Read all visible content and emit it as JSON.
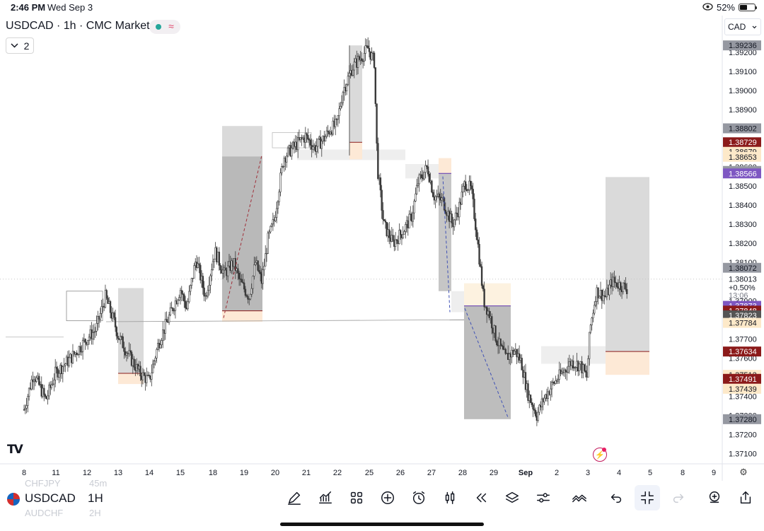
{
  "status_bar": {
    "time": "2:46 PM",
    "date": "Wed Sep 3",
    "battery": "52%",
    "battery_level": 0.52
  },
  "header": {
    "title": "USDCAD · 1h · CMC Markets",
    "collapse_count": "2",
    "currency": "CAD"
  },
  "bottom_bar": {
    "symbol": "USDCAD",
    "interval": "1H",
    "ghost_above_symbol": "CHFJPY",
    "ghost_above_interval": "45m",
    "ghost_below_symbol": "AUDCHF",
    "ghost_below_interval": "2H"
  },
  "chart_data": {
    "type": "candlestick",
    "symbol": "USDCAD",
    "interval": "1h",
    "ylim": [
      1.3705,
      1.3927
    ],
    "y_ticks": [
      "1.37100",
      "1.37200",
      "1.37300",
      "1.37400",
      "1.37500",
      "1.37600",
      "1.37700",
      "1.37800",
      "1.37900",
      "1.38000",
      "1.38100",
      "1.38200",
      "1.38300",
      "1.38400",
      "1.38500",
      "1.38600",
      "1.38700",
      "1.38800",
      "1.38900",
      "1.39000",
      "1.39100",
      "1.39200"
    ],
    "x_ticks": [
      "8",
      "11",
      "12",
      "13",
      "14",
      "15",
      "18",
      "19",
      "20",
      "21",
      "22",
      "25",
      "26",
      "27",
      "28",
      "29",
      "Sep",
      "2",
      "3",
      "4",
      "5",
      "8",
      "9"
    ],
    "price_path": [
      [
        0.0,
        1.3733
      ],
      [
        0.3,
        1.3752
      ],
      [
        0.7,
        1.3738
      ],
      [
        1.0,
        1.3752
      ],
      [
        1.5,
        1.376
      ],
      [
        2.0,
        1.377
      ],
      [
        2.3,
        1.3775
      ],
      [
        2.6,
        1.3792
      ],
      [
        2.9,
        1.3778
      ],
      [
        3.0,
        1.3772
      ],
      [
        3.4,
        1.376
      ],
      [
        3.7,
        1.3752
      ],
      [
        4.0,
        1.3748
      ],
      [
        4.3,
        1.3768
      ],
      [
        4.6,
        1.378
      ],
      [
        5.0,
        1.3796
      ],
      [
        5.2,
        1.3786
      ],
      [
        5.5,
        1.3812
      ],
      [
        5.8,
        1.3792
      ],
      [
        6.1,
        1.3816
      ],
      [
        6.4,
        1.3804
      ],
      [
        6.7,
        1.381
      ],
      [
        6.9,
        1.38
      ],
      [
        7.2,
        1.3792
      ],
      [
        7.4,
        1.381
      ],
      [
        7.6,
        1.38
      ],
      [
        7.8,
        1.3822
      ],
      [
        8.0,
        1.3832
      ],
      [
        8.3,
        1.3865
      ],
      [
        8.6,
        1.387
      ],
      [
        9.0,
        1.3876
      ],
      [
        9.3,
        1.387
      ],
      [
        9.6,
        1.3875
      ],
      [
        9.8,
        1.388
      ],
      [
        10.0,
        1.3882
      ],
      [
        10.2,
        1.39
      ],
      [
        10.5,
        1.3912
      ],
      [
        10.8,
        1.3918
      ],
      [
        11.0,
        1.3922
      ],
      [
        11.2,
        1.3915
      ],
      [
        11.3,
        1.386
      ],
      [
        11.5,
        1.383
      ],
      [
        11.8,
        1.382
      ],
      [
        12.1,
        1.3826
      ],
      [
        12.4,
        1.3834
      ],
      [
        12.6,
        1.3852
      ],
      [
        12.9,
        1.386
      ],
      [
        13.1,
        1.3845
      ],
      [
        13.4,
        1.3842
      ],
      [
        13.7,
        1.383
      ],
      [
        13.9,
        1.3838
      ],
      [
        14.1,
        1.3852
      ],
      [
        14.3,
        1.3848
      ],
      [
        14.5,
        1.3822
      ],
      [
        14.7,
        1.379
      ],
      [
        14.9,
        1.3782
      ],
      [
        15.1,
        1.377
      ],
      [
        15.4,
        1.376
      ],
      [
        15.7,
        1.3764
      ],
      [
        15.9,
        1.3758
      ],
      [
        16.1,
        1.3742
      ],
      [
        16.4,
        1.373
      ],
      [
        16.6,
        1.3738
      ],
      [
        16.9,
        1.3746
      ],
      [
        17.2,
        1.3752
      ],
      [
        17.5,
        1.3758
      ],
      [
        17.8,
        1.3756
      ],
      [
        18.0,
        1.375
      ],
      [
        18.1,
        1.3775
      ],
      [
        18.3,
        1.3795
      ],
      [
        18.6,
        1.3792
      ],
      [
        18.8,
        1.38
      ],
      [
        19.1,
        1.3798
      ],
      [
        19.3,
        1.3796
      ]
    ],
    "current_price": "1.38013",
    "change": "+0.50%",
    "countdown": "13:06",
    "price_labels": [
      {
        "text": "1.39236",
        "price": 1.39236,
        "color": "#9598a1"
      },
      {
        "text": "1.38802",
        "price": 1.38802,
        "color": "#9598a1"
      },
      {
        "text": "1.38729",
        "price": 1.38729,
        "color": "#8b1a1a"
      },
      {
        "text": "1.38679",
        "price": 1.38679,
        "color": "#fde9c9"
      },
      {
        "text": "1.38653",
        "price": 1.38653,
        "color": "#fde9c9"
      },
      {
        "text": "1.38579",
        "price": 1.38579,
        "color": "#9598a1"
      },
      {
        "text": "1.38566",
        "price": 1.38566,
        "color": "#7e57c2"
      },
      {
        "text": "1.38072",
        "price": 1.38072,
        "color": "#9598a1"
      },
      {
        "text": "1.37991",
        "price": 1.37991,
        "color": "#fde9c9"
      },
      {
        "text": "1.37963",
        "price": 1.37963,
        "color": "#9598a1"
      },
      {
        "text": "1.37873",
        "price": 1.37873,
        "color": "#7e57c2"
      },
      {
        "text": "1.37848",
        "price": 1.37848,
        "color": "#8b1a1a"
      },
      {
        "text": "1.37823",
        "price": 1.37823,
        "color": "#555555"
      },
      {
        "text": "1.37784",
        "price": 1.37784,
        "color": "#fde9c9"
      },
      {
        "text": "1.37634",
        "price": 1.37634,
        "color": "#8b1a1a"
      },
      {
        "text": "1.37512",
        "price": 1.37512,
        "color": "#fde9c9"
      },
      {
        "text": "1.37491",
        "price": 1.37491,
        "color": "#8b1a1a"
      },
      {
        "text": "1.37439",
        "price": 1.37439,
        "color": "#fde9c9"
      },
      {
        "text": "1.37280",
        "price": 1.3728,
        "color": "#9598a1"
      }
    ]
  }
}
